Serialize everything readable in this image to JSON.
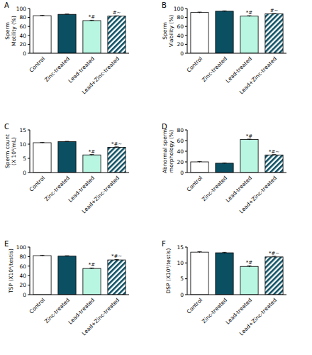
{
  "chart_data": [
    {
      "type": "bar",
      "title": "A",
      "y_label": "Sperm Motility (%)",
      "categories": [
        "Control",
        "Zinc-treated",
        "Lead-treated",
        "Lead+Zinc-treated"
      ],
      "values": [
        84,
        87,
        73,
        83
      ],
      "errors": [
        0.8,
        0.7,
        0.9,
        0.8
      ],
      "annotations": [
        null,
        null,
        "*#",
        "#~"
      ],
      "colors": [
        "#ffffff",
        "#0b4f63",
        "#b9f6e1",
        "#0b4f63"
      ],
      "ylim": [
        0,
        100
      ],
      "yticks": [
        0,
        20,
        40,
        60,
        80,
        100
      ],
      "grid": false
    },
    {
      "type": "bar",
      "title": "B",
      "y_label": "Sperm Viability (%)",
      "categories": [
        "Control",
        "Zinc-treated",
        "Lead-treated",
        "Lead+Zinc-treated"
      ],
      "values": [
        91,
        94,
        83,
        88
      ],
      "errors": [
        1,
        0.8,
        1,
        0.9
      ],
      "annotations": [
        null,
        null,
        "*#",
        "#~"
      ],
      "colors": [
        "#ffffff",
        "#0b4f63",
        "#b9f6e1",
        "#0b4f63"
      ],
      "ylim": [
        0,
        100
      ],
      "yticks": [
        0,
        20,
        40,
        60,
        80,
        100
      ],
      "grid": false
    },
    {
      "type": "bar",
      "title": "C",
      "y_label": "Sperm count (X 10⁶/mL)",
      "categories": [
        "Control",
        "Zinc-treated",
        "Lead-treated",
        "Lead+Zinc-treated"
      ],
      "values": [
        10.5,
        10.9,
        6.2,
        8.9
      ],
      "errors": [
        0.1,
        0.1,
        0.15,
        0.15
      ],
      "annotations": [
        null,
        null,
        "*#",
        "*#~"
      ],
      "colors": [
        "#ffffff",
        "#0b4f63",
        "#b9f6e1",
        "#0b4f63"
      ],
      "ylim": [
        0,
        15
      ],
      "yticks": [
        0,
        5,
        10,
        15
      ],
      "grid": false
    },
    {
      "type": "bar",
      "title": "D",
      "y_label": "Abnormal sperm morphology (%)",
      "categories": [
        "Control",
        "Zinc-treated",
        "Lead-treated",
        "Lead+Zinc-treated"
      ],
      "values": [
        20,
        17.5,
        62,
        33
      ],
      "errors": [
        0.8,
        0.6,
        0.8,
        0.8
      ],
      "annotations": [
        null,
        null,
        "*#",
        "*#~"
      ],
      "colors": [
        "#ffffff",
        "#0b4f63",
        "#b9f6e1",
        "#0b4f63"
      ],
      "ylim": [
        0,
        80
      ],
      "yticks": [
        0,
        20,
        40,
        60,
        80
      ],
      "grid": false
    },
    {
      "type": "bar",
      "title": "E",
      "y_label": "TSP (X10⁶/testis)",
      "categories": [
        "Control",
        "Zinc-treated",
        "Lead-treated",
        "Lead+Zinc-treated"
      ],
      "values": [
        82,
        81,
        55,
        73
      ],
      "errors": [
        0.9,
        0.9,
        1,
        0.9
      ],
      "annotations": [
        null,
        null,
        "*#",
        "*#~"
      ],
      "colors": [
        "#ffffff",
        "#0b4f63",
        "#b9f6e1",
        "#0b4f63"
      ],
      "ylim": [
        0,
        100
      ],
      "yticks": [
        0,
        20,
        40,
        60,
        80,
        100
      ],
      "grid": false
    },
    {
      "type": "bar",
      "title": "F",
      "y_label": "DSP (X10⁶/testis)",
      "categories": [
        "Control",
        "Zinc-treated",
        "Lead-treated",
        "Lead+Zinc-treated"
      ],
      "values": [
        13.4,
        13.2,
        8.9,
        11.9
      ],
      "errors": [
        0.15,
        0.15,
        0.2,
        0.2
      ],
      "annotations": [
        null,
        null,
        "*#",
        "*#~"
      ],
      "colors": [
        "#ffffff",
        "#0b4f63",
        "#b9f6e1",
        "#0b4f63"
      ],
      "ylim": [
        0,
        15
      ],
      "yticks": [
        0,
        5,
        10,
        15
      ],
      "grid": false
    }
  ]
}
